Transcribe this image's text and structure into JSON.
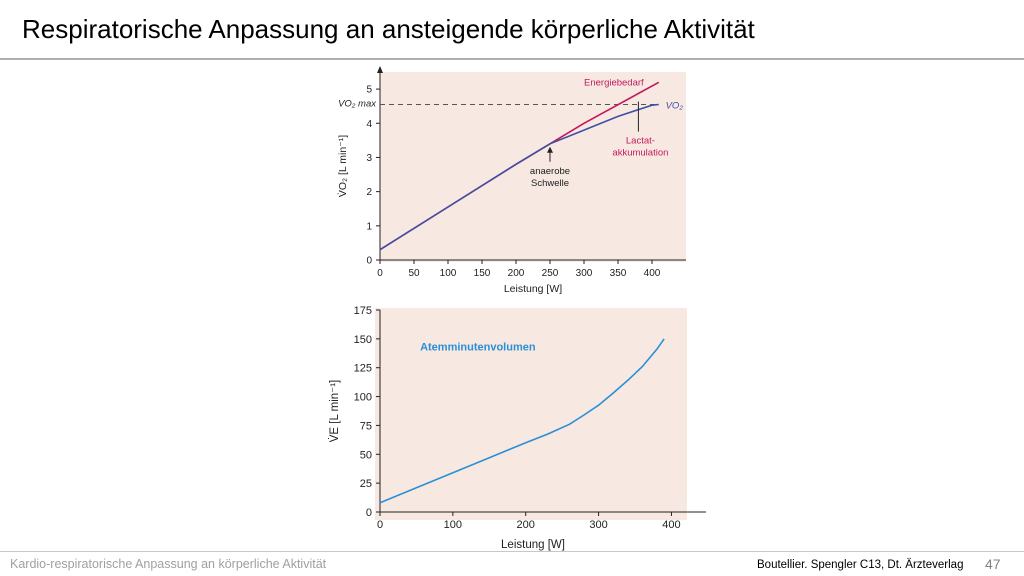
{
  "slide": {
    "title": "Respiratorische Anpassung an ansteigende körperliche Aktivität",
    "footer_left": "Kardio-respiratorische Anpassung an körperliche Aktivität",
    "source": "Boutellier. Spengler C13, Dt. Ärzteverlag",
    "page_number": "47"
  },
  "colors": {
    "energy": "#c2185b",
    "vo2": "#3f4fa6",
    "ventilation": "#2a8fd6",
    "panel_bg": "#f7e9e2"
  },
  "chart_data": [
    {
      "type": "line",
      "xlabel": "Leistung [W]",
      "ylabel": "V̇O₂ [L min⁻¹]",
      "xlim": [
        0,
        450
      ],
      "ylim": [
        0,
        5.5
      ],
      "x_ticks": [
        "0",
        "50",
        "100",
        "150",
        "200",
        "250",
        "300",
        "350",
        "400"
      ],
      "y_ticks": [
        "0",
        "1",
        "2",
        "3",
        "4",
        "5"
      ],
      "reference_line": {
        "label": "VO₂ max",
        "y": 4.55
      },
      "series": [
        {
          "name": "Energiebedarf",
          "x": [
            0,
            100,
            200,
            300,
            410
          ],
          "y": [
            0.3,
            1.55,
            2.8,
            4.0,
            5.2
          ]
        },
        {
          "name": "VO₂",
          "x": [
            0,
            100,
            200,
            250,
            300,
            350,
            380,
            400,
            410
          ],
          "y": [
            0.3,
            1.55,
            2.8,
            3.4,
            3.8,
            4.2,
            4.4,
            4.53,
            4.55
          ]
        }
      ],
      "annotations": [
        {
          "text": [
            "anaerobe",
            "Schwelle"
          ],
          "x": 250,
          "y": 3.4
        },
        {
          "text": [
            "Lactat-",
            "akkumulation"
          ],
          "x": 380,
          "y": 4.4
        }
      ]
    },
    {
      "type": "line",
      "xlabel": "Leistung [W]",
      "ylabel": "V̇E [L min⁻¹]",
      "xlim": [
        0,
        420
      ],
      "ylim": [
        0,
        175
      ],
      "x_ticks": [
        "0",
        "100",
        "200",
        "300",
        "400"
      ],
      "y_ticks": [
        "0",
        "25",
        "50",
        "75",
        "100",
        "125",
        "150",
        "175"
      ],
      "series": [
        {
          "name": "Atemminutenvolumen",
          "x": [
            0,
            25,
            50,
            100,
            150,
            200,
            230,
            260,
            280,
            300,
            320,
            340,
            360,
            380,
            390
          ],
          "y": [
            8,
            14.5,
            21,
            34,
            47,
            60,
            67.5,
            76,
            84,
            92.5,
            103,
            114,
            126,
            141,
            150
          ]
        }
      ]
    }
  ]
}
